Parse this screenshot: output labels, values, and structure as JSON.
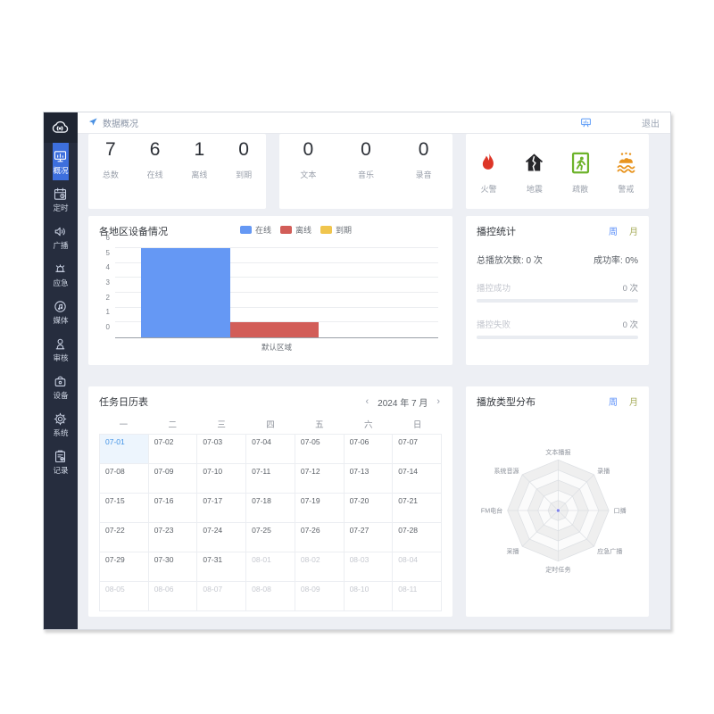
{
  "header": {
    "title": "数据概况",
    "logout_label": "退出"
  },
  "sidebar": {
    "logo_icon": "cloud-broadcast-icon",
    "items": [
      {
        "label": "概况",
        "icon": "dashboard-monitor-icon",
        "active": true
      },
      {
        "label": "定时",
        "icon": "schedule-calendar-icon",
        "active": false
      },
      {
        "label": "广播",
        "icon": "speaker-icon",
        "active": false
      },
      {
        "label": "应急",
        "icon": "emergency-alarm-icon",
        "active": false
      },
      {
        "label": "媒体",
        "icon": "media-note-icon",
        "active": false
      },
      {
        "label": "审核",
        "icon": "audit-stamp-icon",
        "active": false
      },
      {
        "label": "设备",
        "icon": "device-icon",
        "active": false
      },
      {
        "label": "系统",
        "icon": "gear-icon",
        "active": false
      },
      {
        "label": "记录",
        "icon": "records-clipboard-icon",
        "active": false
      }
    ]
  },
  "device_stats": {
    "items": [
      {
        "value": "7",
        "label": "总数"
      },
      {
        "value": "6",
        "label": "在线"
      },
      {
        "value": "1",
        "label": "离线"
      },
      {
        "value": "0",
        "label": "到期"
      }
    ]
  },
  "media_stats": {
    "items": [
      {
        "value": "0",
        "label": "文本"
      },
      {
        "value": "0",
        "label": "音乐"
      },
      {
        "value": "0",
        "label": "录音"
      }
    ]
  },
  "alerts": {
    "items": [
      {
        "label": "火警",
        "icon": "fire-icon",
        "color": "#dd3527"
      },
      {
        "label": "地震",
        "icon": "earthquake-house-icon",
        "color": "#26262a"
      },
      {
        "label": "疏散",
        "icon": "evacuation-exit-icon",
        "color": "#6db32b"
      },
      {
        "label": "警戒",
        "icon": "flood-alert-icon",
        "color": "#e8941f"
      }
    ]
  },
  "playback_stats": {
    "title": "播控统计",
    "tabs": [
      {
        "label": "周",
        "active": true
      },
      {
        "label": "月",
        "active": false
      }
    ],
    "total_label": "总播放次数: 0 次",
    "success_rate_label": "成功率: 0%",
    "rows": [
      {
        "label": "播控成功",
        "value": "0 次"
      },
      {
        "label": "播控失败",
        "value": "0 次"
      }
    ]
  },
  "calendar": {
    "title": "任务日历表",
    "prev": "‹",
    "next": "›",
    "month_label": "2024 年 7 月",
    "weekdays": [
      "一",
      "二",
      "三",
      "四",
      "五",
      "六",
      "日"
    ],
    "cells": [
      {
        "label": "07-01",
        "state": "selected"
      },
      {
        "label": "07-02",
        "state": "current"
      },
      {
        "label": "07-03",
        "state": "current"
      },
      {
        "label": "07-04",
        "state": "current"
      },
      {
        "label": "07-05",
        "state": "current"
      },
      {
        "label": "07-06",
        "state": "current"
      },
      {
        "label": "07-07",
        "state": "current"
      },
      {
        "label": "07-08",
        "state": "current"
      },
      {
        "label": "07-09",
        "state": "current"
      },
      {
        "label": "07-10",
        "state": "current"
      },
      {
        "label": "07-11",
        "state": "current"
      },
      {
        "label": "07-12",
        "state": "current"
      },
      {
        "label": "07-13",
        "state": "current"
      },
      {
        "label": "07-14",
        "state": "current"
      },
      {
        "label": "07-15",
        "state": "current"
      },
      {
        "label": "07-16",
        "state": "current"
      },
      {
        "label": "07-17",
        "state": "current"
      },
      {
        "label": "07-18",
        "state": "current"
      },
      {
        "label": "07-19",
        "state": "current"
      },
      {
        "label": "07-20",
        "state": "current"
      },
      {
        "label": "07-21",
        "state": "current"
      },
      {
        "label": "07-22",
        "state": "current"
      },
      {
        "label": "07-23",
        "state": "current"
      },
      {
        "label": "07-24",
        "state": "current"
      },
      {
        "label": "07-25",
        "state": "current"
      },
      {
        "label": "07-26",
        "state": "current"
      },
      {
        "label": "07-27",
        "state": "current"
      },
      {
        "label": "07-28",
        "state": "current"
      },
      {
        "label": "07-29",
        "state": "current"
      },
      {
        "label": "07-30",
        "state": "current"
      },
      {
        "label": "07-31",
        "state": "current"
      },
      {
        "label": "08-01",
        "state": "other"
      },
      {
        "label": "08-02",
        "state": "other"
      },
      {
        "label": "08-03",
        "state": "other"
      },
      {
        "label": "08-04",
        "state": "other"
      },
      {
        "label": "08-05",
        "state": "other"
      },
      {
        "label": "08-06",
        "state": "other"
      },
      {
        "label": "08-07",
        "state": "other"
      },
      {
        "label": "08-08",
        "state": "other"
      },
      {
        "label": "08-09",
        "state": "other"
      },
      {
        "label": "08-10",
        "state": "other"
      },
      {
        "label": "08-11",
        "state": "other"
      }
    ]
  },
  "radar_panel": {
    "title": "播放类型分布",
    "tabs": [
      {
        "label": "周",
        "active": true
      },
      {
        "label": "月",
        "active": false
      }
    ]
  },
  "chart_data": [
    {
      "type": "bar",
      "title": "各地区设备情况",
      "categories": [
        "默认区域"
      ],
      "series": [
        {
          "name": "在线",
          "values": [
            6
          ],
          "color": "#6598f4"
        },
        {
          "name": "离线",
          "values": [
            1
          ],
          "color": "#d25d58"
        },
        {
          "name": "到期",
          "values": [
            0
          ],
          "color": "#f0c54d"
        }
      ],
      "ylim": [
        0,
        6
      ],
      "yticks": [
        0,
        1,
        2,
        3,
        4,
        5,
        6
      ],
      "grid": true,
      "legend_position": "top"
    },
    {
      "type": "radar",
      "title": "播放类型分布",
      "axes": [
        "文本播报",
        "录播",
        "口播",
        "应急广播",
        "定时任务",
        "采播",
        "FM电台",
        "系统音源"
      ],
      "series": [
        {
          "name": "播放类型",
          "values": [
            0,
            0,
            0,
            0,
            0,
            0,
            0,
            0
          ]
        }
      ],
      "rings": 5,
      "max": 1
    }
  ],
  "colors": {
    "accent_blue": "#5b8ff9",
    "sidebar_bg": "#262d3e",
    "sidebar_active": "#3d6fdd",
    "content_bg": "#edeff4",
    "online_bar": "#6598f4",
    "offline_bar": "#d25d58",
    "expired_bar": "#f0c54d",
    "selected_day": "#4293e6"
  }
}
